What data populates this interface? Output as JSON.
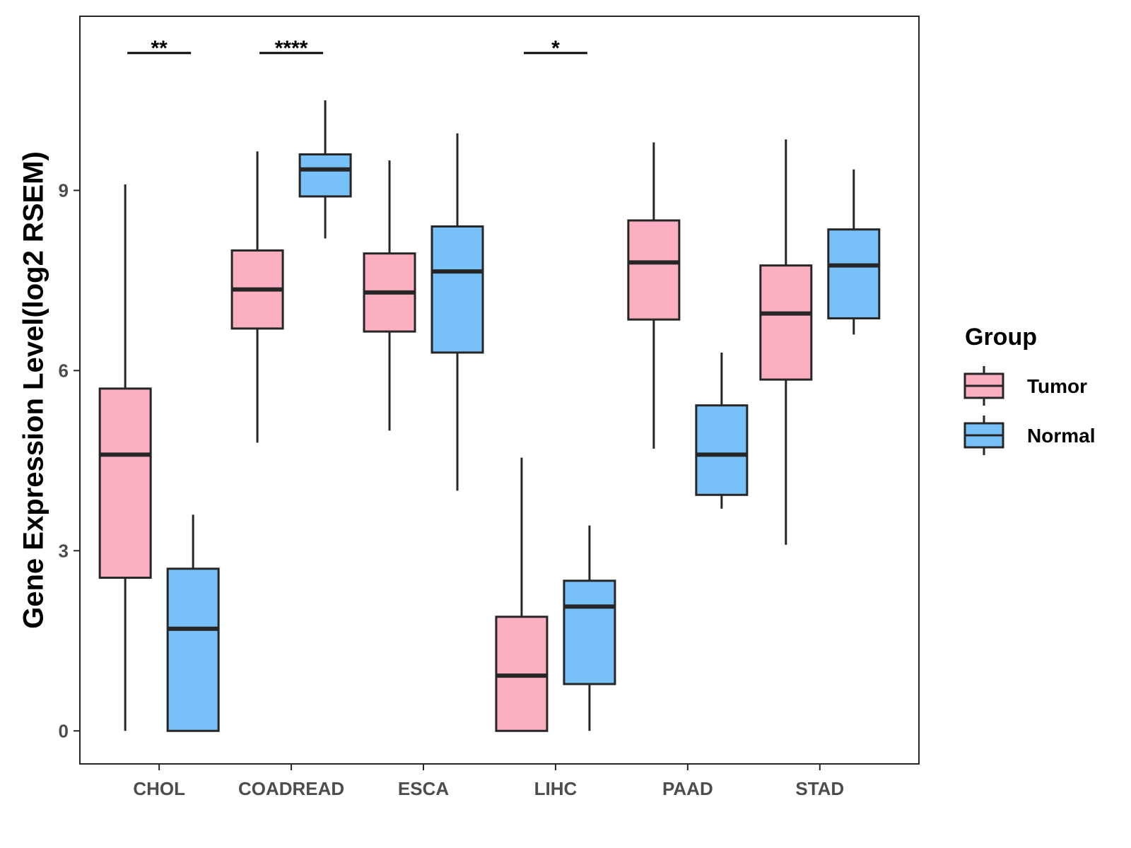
{
  "chart_data": {
    "type": "boxplot",
    "title": "",
    "xlabel": "",
    "ylabel": "Gene Expression Level(log2 RSEM)",
    "ylim": [
      -0.55,
      11.9
    ],
    "yticks": [
      0,
      3,
      6,
      9
    ],
    "ytick_labels": [
      "0",
      "3",
      "6",
      "9"
    ],
    "categories": [
      "CHOL",
      "COADREAD",
      "ESCA",
      "LIHC",
      "PAAD",
      "STAD"
    ],
    "legend": {
      "title": "Group",
      "placement": "right",
      "entries": [
        {
          "name": "Tumor",
          "color": "#FBAFC0"
        },
        {
          "name": "Normal",
          "color": "#77C1F8"
        }
      ]
    },
    "series": [
      {
        "name": "Tumor",
        "color": "#FBAFC0",
        "boxes": [
          {
            "category": "CHOL",
            "whisker_low": 0.0,
            "q1": 2.55,
            "median": 4.6,
            "q3": 5.7,
            "whisker_high": 9.1
          },
          {
            "category": "COADREAD",
            "whisker_low": 4.8,
            "q1": 6.7,
            "median": 7.35,
            "q3": 8.0,
            "whisker_high": 9.65
          },
          {
            "category": "ESCA",
            "whisker_low": 5.0,
            "q1": 6.65,
            "median": 7.3,
            "q3": 7.95,
            "whisker_high": 9.5
          },
          {
            "category": "LIHC",
            "whisker_low": 0.0,
            "q1": 0.0,
            "median": 0.92,
            "q3": 1.9,
            "whisker_high": 4.55
          },
          {
            "category": "PAAD",
            "whisker_low": 4.7,
            "q1": 6.85,
            "median": 7.8,
            "q3": 8.5,
            "whisker_high": 9.8
          },
          {
            "category": "STAD",
            "whisker_low": 3.1,
            "q1": 5.85,
            "median": 6.95,
            "q3": 7.75,
            "whisker_high": 9.85
          }
        ]
      },
      {
        "name": "Normal",
        "color": "#77C1F8",
        "boxes": [
          {
            "category": "CHOL",
            "whisker_low": 0.0,
            "q1": 0.0,
            "median": 1.7,
            "q3": 2.7,
            "whisker_high": 3.6
          },
          {
            "category": "COADREAD",
            "whisker_low": 8.2,
            "q1": 8.9,
            "median": 9.35,
            "q3": 9.6,
            "whisker_high": 10.5
          },
          {
            "category": "ESCA",
            "whisker_low": 4.0,
            "q1": 6.3,
            "median": 7.65,
            "q3": 8.4,
            "whisker_high": 9.95
          },
          {
            "category": "LIHC",
            "whisker_low": 0.0,
            "q1": 0.78,
            "median": 2.07,
            "q3": 2.5,
            "whisker_high": 3.42
          },
          {
            "category": "PAAD",
            "whisker_low": 3.7,
            "q1": 3.93,
            "median": 4.6,
            "q3": 5.42,
            "whisker_high": 6.3
          },
          {
            "category": "STAD",
            "whisker_low": 6.6,
            "q1": 6.87,
            "median": 7.75,
            "q3": 8.35,
            "whisker_high": 9.35
          }
        ]
      }
    ],
    "annotations": [
      {
        "category": "CHOL",
        "label": "**"
      },
      {
        "category": "COADREAD",
        "label": "****"
      },
      {
        "category": "LIHC",
        "label": "*"
      }
    ]
  }
}
